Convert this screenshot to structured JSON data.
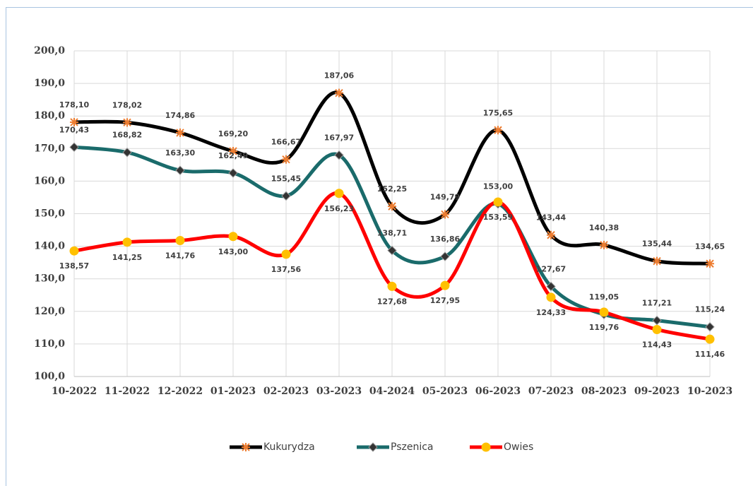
{
  "chart_data": {
    "type": "line",
    "categories": [
      "10-2022",
      "11-2022",
      "12-2022",
      "01-2023",
      "02-2023",
      "03-2023",
      "04-2024",
      "05-2023",
      "06-2023",
      "07-2023",
      "08-2023",
      "09-2023",
      "10-2023"
    ],
    "ylim": [
      100,
      200
    ],
    "yticks": [
      {
        "value": 100,
        "label": "100,0"
      },
      {
        "value": 110,
        "label": "110,0"
      },
      {
        "value": 120,
        "label": "120,0"
      },
      {
        "value": 130,
        "label": "130,0"
      },
      {
        "value": 140,
        "label": "140,0"
      },
      {
        "value": 150,
        "label": "150,0"
      },
      {
        "value": 160,
        "label": "160,0"
      },
      {
        "value": 170,
        "label": "170,0"
      },
      {
        "value": 180,
        "label": "180,0"
      },
      {
        "value": 190,
        "label": "190,0"
      },
      {
        "value": 200,
        "label": "200,0"
      }
    ],
    "grid": true,
    "smooth": true,
    "legend": "bottom",
    "series": [
      {
        "name": "Kukurydza",
        "color": "#000000",
        "marker": "star",
        "marker_color": "#ed7d31",
        "label_position": "above",
        "values": [
          178.1,
          178.02,
          174.86,
          169.2,
          166.67,
          187.06,
          152.25,
          149.79,
          175.65,
          143.44,
          140.38,
          135.44,
          134.65
        ],
        "value_labels": [
          "178,10",
          "178,02",
          "174,86",
          "169,20",
          "166,67",
          "187,06",
          "152,25",
          "149,79",
          "175,65",
          "143,44",
          "140,38",
          "135,44",
          "134,65"
        ]
      },
      {
        "name": "Pszenica",
        "color": "#1a6b6b",
        "marker": "diamond",
        "marker_color": "#333333",
        "label_position": "above",
        "values": [
          170.43,
          168.82,
          163.3,
          162.49,
          155.45,
          167.97,
          138.71,
          136.86,
          153.0,
          127.67,
          119.05,
          117.21,
          115.24
        ],
        "value_labels": [
          "170,43",
          "168,82",
          "163,30",
          "162,49",
          "155,45",
          "167,97",
          "138,71",
          "136,86",
          "153,00",
          "127,67",
          "119,05",
          "117,21",
          "115,24"
        ]
      },
      {
        "name": "Owies",
        "color": "#ff0000",
        "marker": "circle",
        "marker_color": "#ffc000",
        "label_position": "below",
        "values": [
          138.57,
          141.25,
          141.76,
          143.0,
          137.56,
          156.23,
          127.68,
          127.95,
          153.59,
          124.33,
          119.76,
          114.43,
          111.46
        ],
        "value_labels": [
          "138,57",
          "141,25",
          "141,76",
          "143,00",
          "137,56",
          "156,23",
          "127,68",
          "127,95",
          "153,59",
          "124,33",
          "119,76",
          "114,43",
          "111,46"
        ]
      }
    ]
  }
}
